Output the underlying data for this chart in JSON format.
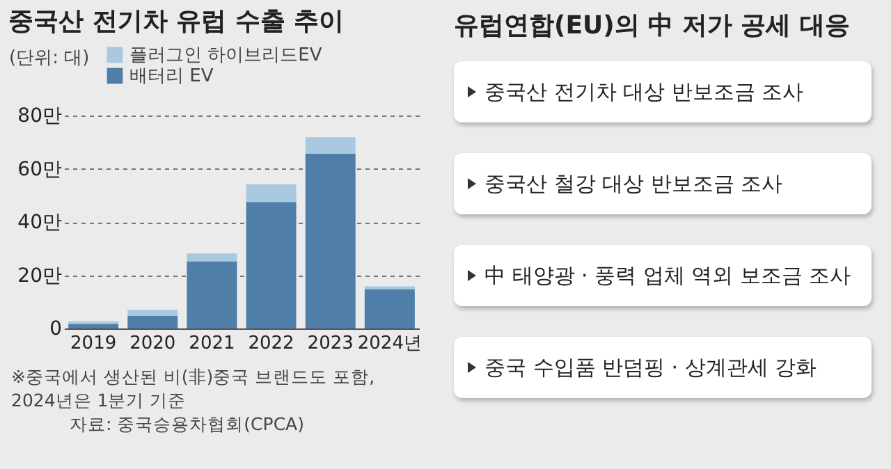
{
  "chart_data": [
    {
      "type": "bar",
      "stacked": true,
      "title": "중국산 전기차 유럽 수출 추이",
      "ylabel": "(단위: 대)",
      "categories": [
        "2019",
        "2020",
        "2021",
        "2022",
        "2023",
        "2024년"
      ],
      "series": [
        {
          "name": "배터리 EV",
          "color": "#4f7fa8",
          "values": [
            1.7,
            4.7,
            25.2,
            47.5,
            65.7,
            14.8
          ]
        },
        {
          "name": "플러그인 하이브리드EV",
          "color": "#a9c8e2",
          "values": [
            0.9,
            2.3,
            3.0,
            6.6,
            6.1,
            1.0
          ]
        }
      ],
      "ylim": [
        0,
        80
      ],
      "yticks": [
        0,
        {
          "value": 20,
          "label": "20만"
        },
        {
          "value": 40,
          "label": "40만"
        },
        {
          "value": 60,
          "label": "60만"
        },
        {
          "value": 80,
          "label": "80만"
        }
      ],
      "grid": "y",
      "legend": "top left",
      "annotations": [
        "※중국에서 생산된 비(非)중국 브랜드도 포함, 2024년은 1분기 기준",
        "자료: 중국승용차협회(CPCA)"
      ]
    },
    {
      "type": "other",
      "title": "유럽연합(EU)의 中 저가 공세 대응",
      "annotations": [
        "중국산 전기차 대상 반보조금 조사",
        "중국산 철강 대상 반보조금 조사",
        "中 태양광 · 풍력 업체 역외 보조금 조사",
        "중국 수입품 반덤핑 · 상계관세 강화"
      ]
    }
  ]
}
